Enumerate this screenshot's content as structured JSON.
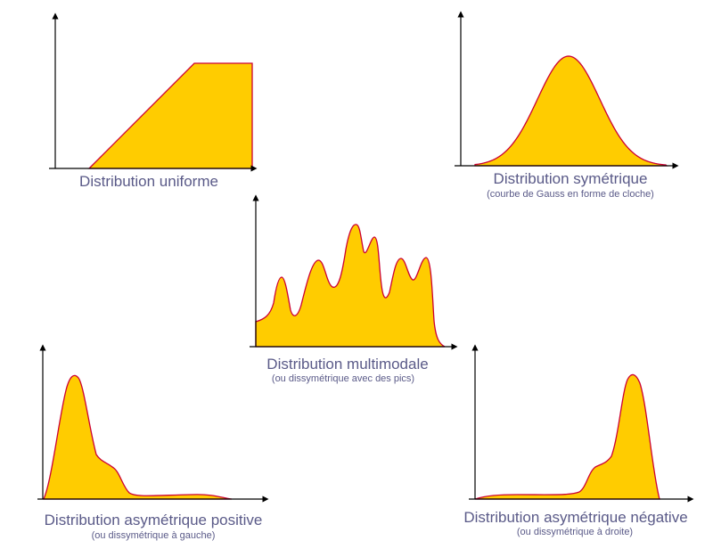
{
  "colors": {
    "fill": "#ffcc00",
    "outline": "#cc0033",
    "axis": "#000000",
    "text": "#5a5a88"
  },
  "panels": {
    "uniform": {
      "title": "Distribution uniforme"
    },
    "symmetric": {
      "title": "Distribution symétrique",
      "subtitle": "(courbe de Gauss en forme de cloche)"
    },
    "multimodal": {
      "title": "Distribution multimodale",
      "subtitle": "(ou dissymétrique avec des pics)"
    },
    "positive": {
      "title": "Distribution asymétrique positive",
      "subtitle": "(ou dissymétrique à gauche)"
    },
    "negative": {
      "title": "Distribution asymétrique négative",
      "subtitle": "(ou dissymétrique à droite)"
    }
  }
}
